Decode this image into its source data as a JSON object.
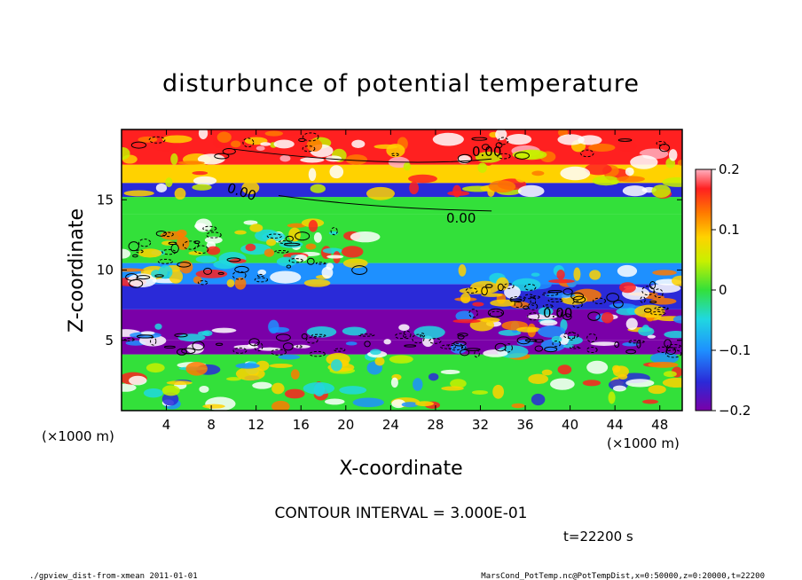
{
  "chart_data": {
    "type": "heatmap",
    "title": "disturbunce of potential temperature",
    "xlabel": "X-coordinate",
    "ylabel": "Z-coordinate",
    "x_unit": "(×1000 m)",
    "y_unit": "(×1000 m)",
    "xlim": [
      0,
      50
    ],
    "ylim": [
      0,
      20
    ],
    "x_ticks": [
      4,
      8,
      12,
      16,
      20,
      24,
      28,
      32,
      36,
      40,
      44,
      48
    ],
    "y_ticks": [
      5,
      10,
      15
    ],
    "colorbar": {
      "range": [
        -0.2,
        0.2
      ],
      "tick_values": [
        0.2,
        0.1,
        0,
        -0.1,
        -0.2
      ],
      "tick_labels": [
        "0.2",
        "0.1",
        "0",
        "−0.1",
        "−0.2"
      ]
    },
    "contour_labels": [
      "0.00",
      "0.00",
      "0.00",
      "0.00"
    ],
    "contour_interval_text": "CONTOUR INTERVAL = 3.000E-01",
    "time_text": "t=22200 s",
    "footer_left": "./gpview_dist-from-xmean  2011-01-01",
    "footer_right": "MarsCond_PotTemp.nc@PotTempDist,x=0:50000,z=0:20000,t=22200",
    "bands": [
      {
        "z": [
          0,
          4
        ],
        "level": 0.02
      },
      {
        "z": [
          4,
          5
        ],
        "level": -0.18
      },
      {
        "z": [
          5,
          7.2
        ],
        "level": -0.2
      },
      {
        "z": [
          7.2,
          9
        ],
        "level": -0.13
      },
      {
        "z": [
          9,
          10.5
        ],
        "level": -0.05
      },
      {
        "z": [
          10.5,
          14
        ],
        "level": 0.01
      },
      {
        "z": [
          14,
          15.2
        ],
        "level": 0.03
      },
      {
        "z": [
          15.2,
          16.2
        ],
        "level": -0.16
      },
      {
        "z": [
          16.2,
          17.5
        ],
        "level": 0.12
      },
      {
        "z": [
          17.5,
          20
        ],
        "level": 0.2
      }
    ]
  }
}
